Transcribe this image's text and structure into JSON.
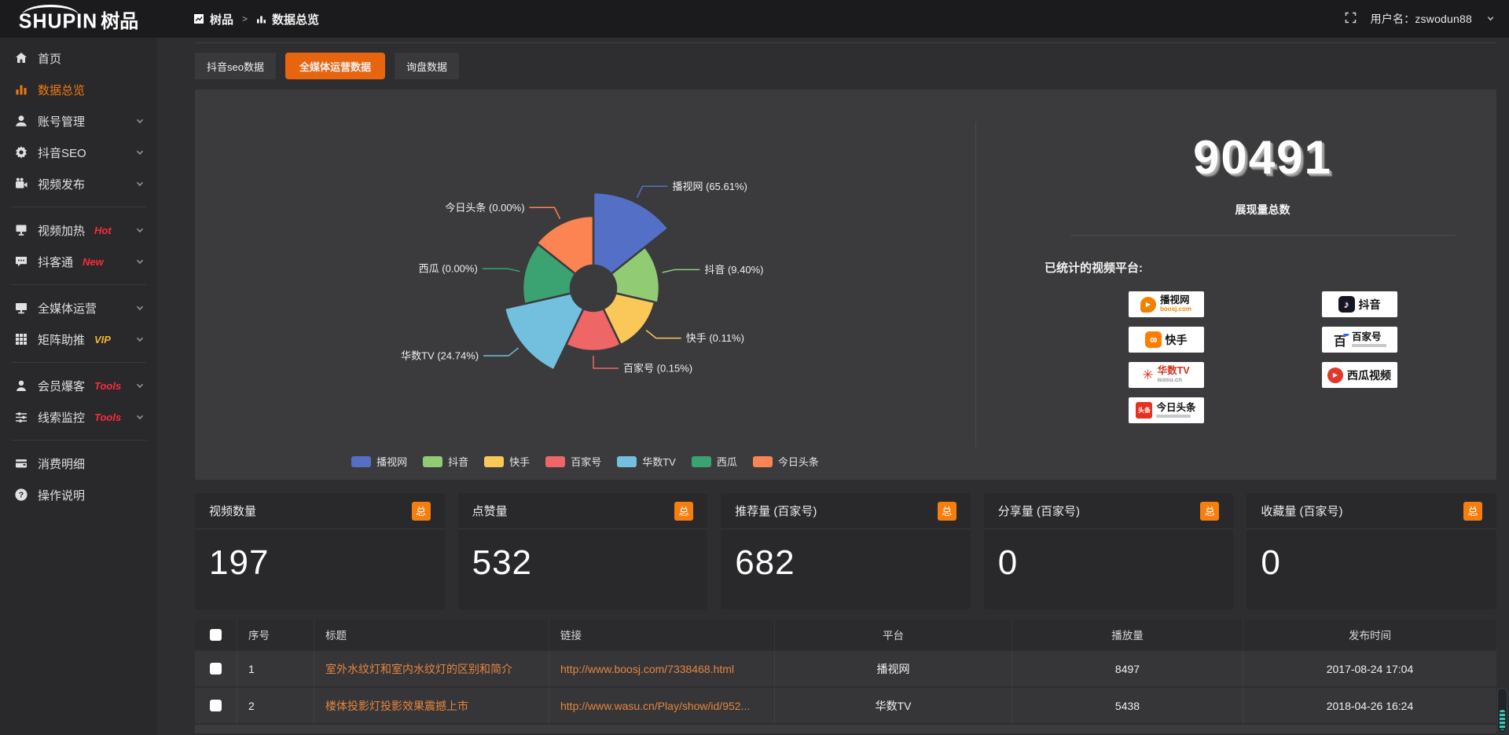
{
  "header": {
    "logo_main": "SHUPIN",
    "logo_cn": "树品",
    "breadcrumb": {
      "root": "树品",
      "separator": ">",
      "current": "数据总览"
    },
    "user_label": "用户名：zswodun88"
  },
  "sidebar": {
    "items": [
      {
        "key": "home",
        "icon": "home",
        "label": "首页"
      },
      {
        "key": "data-overview",
        "icon": "bar-chart",
        "label": "数据总览",
        "active": true
      },
      {
        "key": "account-manage",
        "icon": "user",
        "label": "账号管理",
        "chevron": true
      },
      {
        "key": "douyin-seo",
        "icon": "gear",
        "label": "抖音SEO",
        "chevron": true
      },
      {
        "key": "video-publish",
        "icon": "video",
        "label": "视频发布",
        "chevron": true
      },
      {
        "divider": true
      },
      {
        "key": "video-heat",
        "icon": "heat",
        "label": "视频加热",
        "badge": "Hot",
        "badge_color": "#fb2a3c",
        "chevron": true
      },
      {
        "key": "douketong",
        "icon": "chat",
        "label": "抖客通",
        "badge": "New",
        "badge_color": "#fb2a3c",
        "chevron": true
      },
      {
        "divider": true
      },
      {
        "key": "media-ops",
        "icon": "monitor",
        "label": "全媒体运营",
        "chevron": true
      },
      {
        "key": "matrix-boost",
        "icon": "grid",
        "label": "矩阵助推",
        "badge": "VIP",
        "badge_color": "#f0b62c",
        "chevron": true
      },
      {
        "divider": true
      },
      {
        "key": "member-baoke",
        "icon": "member",
        "label": "会员爆客",
        "badge": "Tools",
        "badge_color": "#fb2a3c",
        "chevron": true
      },
      {
        "key": "clue-monitor",
        "icon": "sliders",
        "label": "线索监控",
        "badge": "Tools",
        "badge_color": "#fb2a3c",
        "chevron": true
      },
      {
        "divider": true
      },
      {
        "key": "consume-detail",
        "icon": "wallet",
        "label": "消费明细"
      },
      {
        "key": "help",
        "icon": "question",
        "label": "操作说明"
      }
    ]
  },
  "tabs": [
    {
      "key": "douyin-seo-data",
      "label": "抖音seo数据"
    },
    {
      "key": "media-ops-data",
      "label": "全媒体运营数据",
      "active": true
    },
    {
      "key": "inquiry-data",
      "label": "询盘数据"
    }
  ],
  "chart_data": {
    "type": "pie",
    "variant": "nightingale-rose-donut",
    "legend_position": "bottom",
    "unit": "percent",
    "series": [
      {
        "name": "播视网",
        "value": 65.61,
        "label": "播视网 (65.61%)",
        "color": "#5470c6"
      },
      {
        "name": "抖音",
        "value": 9.4,
        "label": "抖音 (9.40%)",
        "color": "#91cc75"
      },
      {
        "name": "快手",
        "value": 0.11,
        "label": "快手 (0.11%)",
        "color": "#fac858"
      },
      {
        "name": "百家号",
        "value": 0.15,
        "label": "百家号 (0.15%)",
        "color": "#ee6666"
      },
      {
        "name": "华数TV",
        "value": 24.74,
        "label": "华数TV (24.74%)",
        "color": "#73c0de"
      },
      {
        "name": "西瓜",
        "value": 0.0,
        "label": "西瓜 (0.00%)",
        "color": "#3ba272"
      },
      {
        "name": "今日头条",
        "value": 0.0,
        "label": "今日头条 (0.00%)",
        "color": "#fc8452"
      }
    ]
  },
  "summary": {
    "total_value": "90491",
    "total_label": "展现量总数",
    "platforms_title": "已统计的视频平台:",
    "platforms": [
      {
        "key": "boosj",
        "name": "播视网",
        "sub": "boosj.com"
      },
      {
        "key": "kuaishou",
        "name": "快手"
      },
      {
        "key": "wasu",
        "name": "华数TV",
        "sub": "wasu.cn"
      },
      {
        "key": "toutiao",
        "name": "今日头条"
      },
      {
        "key": "douyin",
        "name": "抖音"
      },
      {
        "key": "baijiahao",
        "name": "百家号"
      },
      {
        "key": "xigua",
        "name": "西瓜视频"
      }
    ]
  },
  "stat_cards": [
    {
      "label": "视频数量",
      "badge": "总",
      "value": "197"
    },
    {
      "label": "点赞量",
      "badge": "总",
      "value": "532"
    },
    {
      "label": "推荐量 (百家号)",
      "badge": "总",
      "value": "682"
    },
    {
      "label": "分享量 (百家号)",
      "badge": "总",
      "value": "0"
    },
    {
      "label": "收藏量 (百家号)",
      "badge": "总",
      "value": "0"
    }
  ],
  "table": {
    "columns": [
      "序号",
      "标题",
      "链接",
      "平台",
      "播放量",
      "发布时间"
    ],
    "rows": [
      {
        "num": "1",
        "title": "室外水纹灯和室内水纹灯的区别和简介",
        "link": "http://www.boosj.com/7338468.html",
        "platform": "播视网",
        "plays": "8497",
        "time": "2017-08-24 17:04"
      },
      {
        "num": "2",
        "title": "楼体投影灯投影效果震撼上市",
        "link": "http://www.wasu.cn/Play/show/id/952...",
        "platform": "华数TV",
        "plays": "5438",
        "time": "2018-04-26 16:24"
      }
    ]
  }
}
